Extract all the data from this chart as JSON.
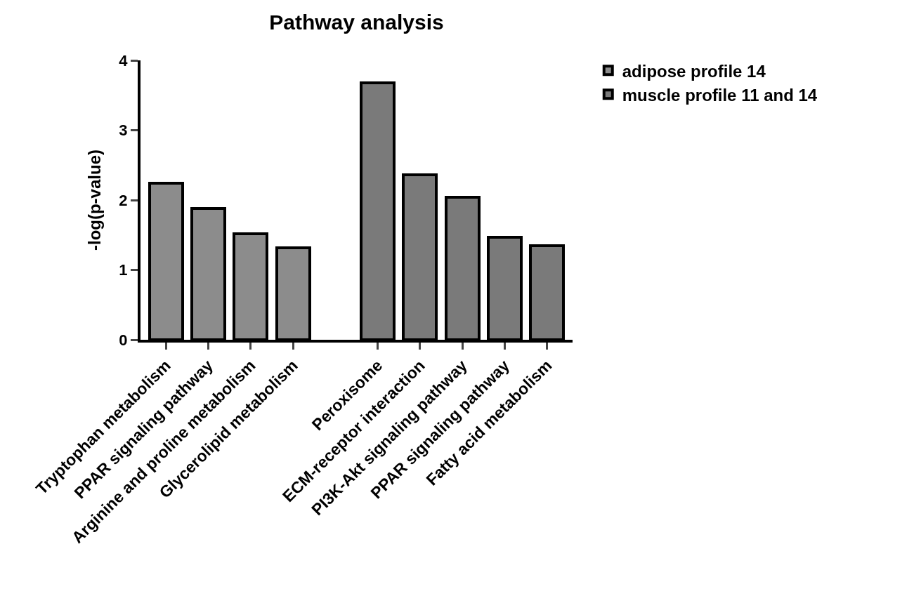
{
  "chart_data": {
    "type": "bar",
    "title": "Pathway analysis",
    "ylabel": "-log(p-value)",
    "categories": [
      "Tryptophan metabolism",
      "PPAR signaling pathway",
      "Arginine and proline metabolism",
      "Glycerolipid metabolism",
      null,
      "Peroxisome",
      "ECM-receptor interaction",
      "PI3K-Akt signaling pathway",
      "PPAR signaling pathway",
      "Fatty acid metabolism"
    ],
    "series": [
      {
        "name": "adipose profile 14",
        "color": "#8c8c8c",
        "values": [
          2.24,
          1.88,
          1.52,
          1.32,
          null,
          null,
          null,
          null,
          null,
          null
        ]
      },
      {
        "name": "muscle profile 11 and 14",
        "color": "#7a7a7a",
        "values": [
          null,
          null,
          null,
          null,
          null,
          3.68,
          2.36,
          2.04,
          1.47,
          1.35
        ]
      }
    ],
    "ylim": [
      0,
      4
    ],
    "yticks": [
      0,
      1,
      2,
      3,
      4
    ],
    "grid": false,
    "legend": "top right"
  }
}
